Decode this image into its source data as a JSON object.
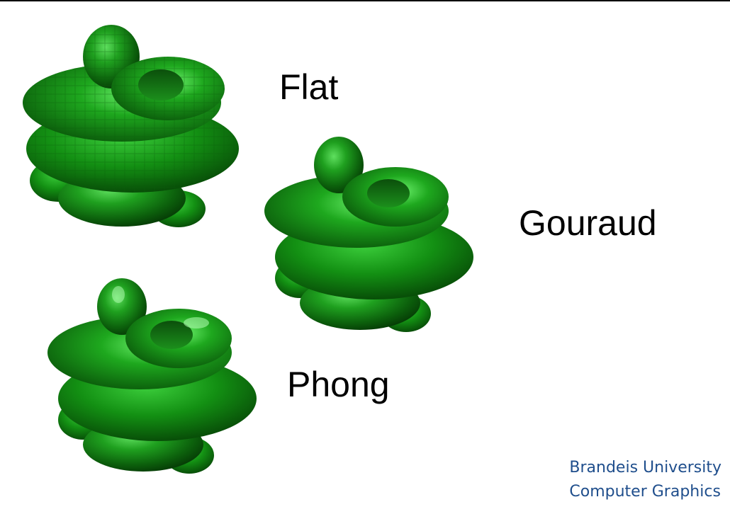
{
  "labels": {
    "flat": "Flat",
    "gouraud": "Gouraud",
    "phong": "Phong"
  },
  "footer": {
    "line1": "Brandeis University",
    "line2": "Computer Graphics"
  },
  "colors": {
    "shape_green": "#1f8a1f",
    "footer_blue": "#1f4e8c"
  }
}
